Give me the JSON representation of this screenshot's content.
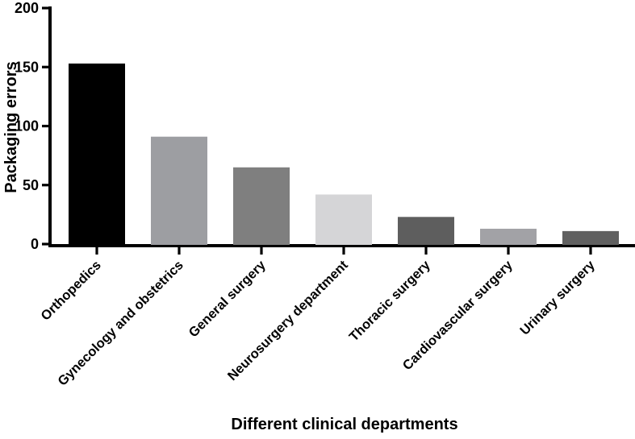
{
  "chart_data": {
    "type": "bar",
    "title": "",
    "categories": [
      "Orthopedics",
      "Gynecology and obstetrics",
      "General surgery",
      "Neurosurgery department",
      "Thoracic surgery",
      "Cardiovascular surgery",
      "Urinary surgery"
    ],
    "values": [
      153,
      91,
      65,
      42,
      23,
      13,
      11
    ],
    "bar_colors": [
      "#000000",
      "#9d9ea2",
      "#7f7f7f",
      "#d5d5d7",
      "#5e5e5e",
      "#a2a2a6",
      "#606060"
    ],
    "xlabel": "Different clinical departments",
    "ylabel": "Packaging errors",
    "ylim": [
      0,
      200
    ],
    "yticks": [
      0,
      50,
      100,
      150,
      200
    ],
    "grid": false,
    "legend_position": "none",
    "axis_color": "#000000",
    "background_color": "#ffffff"
  }
}
